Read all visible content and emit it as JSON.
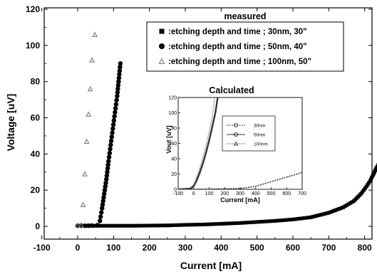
{
  "chart_data": [
    {
      "type": "scatter",
      "xlabel": "Current [mA]",
      "ylabel": "Voltage [uV]",
      "xlim": [
        -100,
        840
      ],
      "ylim": [
        -5,
        120
      ],
      "xticks": [
        "-100",
        "0",
        "100",
        "200",
        "300",
        "400",
        "500",
        "600",
        "700",
        "800"
      ],
      "yticks": [
        "0",
        "20",
        "40",
        "60",
        "80",
        "100",
        "120"
      ],
      "legend_title": "measured",
      "legend_position": "top-right",
      "series": [
        {
          "name": ":etching depth and time ;   30nm, 30\"",
          "marker": "square",
          "color": "#000000",
          "points": [
            [
              0,
              0.3
            ],
            [
              50,
              0.3
            ],
            [
              100,
              0.3
            ],
            [
              150,
              0.3
            ],
            [
              200,
              0.4
            ],
            [
              250,
              0.5
            ],
            [
              300,
              0.8
            ],
            [
              350,
              1.0
            ],
            [
              400,
              1.4
            ],
            [
              450,
              1.8
            ],
            [
              500,
              2.4
            ],
            [
              550,
              3.0
            ],
            [
              600,
              3.8
            ],
            [
              650,
              5.0
            ],
            [
              700,
              7.5
            ],
            [
              740,
              10.5
            ],
            [
              770,
              14
            ],
            [
              790,
              18
            ],
            [
              805,
              22
            ],
            [
              815,
              25
            ],
            [
              825,
              29
            ],
            [
              832,
              32
            ],
            [
              838,
              34
            ]
          ]
        },
        {
          "name": ":etching depth and time ;   50nm, 40\"",
          "marker": "circle",
          "color": "#000000",
          "points": [
            [
              0,
              0.3
            ],
            [
              20,
              0.3
            ],
            [
              40,
              0.4
            ],
            [
              55,
              0.6
            ],
            [
              62,
              3
            ],
            [
              68,
              10
            ],
            [
              74,
              18
            ],
            [
              80,
              26
            ],
            [
              86,
              36
            ],
            [
              92,
              45
            ],
            [
              98,
              54
            ],
            [
              104,
              63
            ],
            [
              110,
              72
            ],
            [
              115,
              82
            ],
            [
              119,
              90
            ]
          ]
        },
        {
          "name": ":etching depth and time ; 100nm, 50\"",
          "marker": "triangle",
          "color": "#7a7a7a",
          "points": [
            [
              0,
              0.5
            ],
            [
              10,
              0.8
            ],
            [
              15,
              12
            ],
            [
              20,
              29
            ],
            [
              25,
              47
            ],
            [
              30,
              62
            ],
            [
              35,
              76
            ],
            [
              40,
              92
            ],
            [
              48,
              106
            ]
          ]
        }
      ]
    },
    {
      "type": "line",
      "title": "Calculated",
      "xlabel": "Current [mA]",
      "ylabel": "Vout [uV]",
      "xlim": [
        -100,
        700
      ],
      "ylim": [
        0,
        120
      ],
      "xticks": [
        "-100",
        "0",
        "100",
        "200",
        "300",
        "400",
        "500",
        "600",
        "700"
      ],
      "yticks": [
        "0",
        "20",
        "40",
        "60",
        "80",
        "100",
        "120"
      ],
      "legend_position": "right",
      "series": [
        {
          "name": "30nm",
          "color": "#333333",
          "points": [
            [
              -100,
              0
            ],
            [
              0,
              0
            ],
            [
              300,
              1
            ],
            [
              400,
              4
            ],
            [
              450,
              7
            ],
            [
              500,
              10
            ],
            [
              550,
              13
            ],
            [
              600,
              16
            ],
            [
              650,
              19
            ],
            [
              700,
              22
            ]
          ]
        },
        {
          "name": "50nm",
          "color": "#333333",
          "points": [
            [
              -100,
              0
            ],
            [
              -20,
              1
            ],
            [
              0,
              4
            ],
            [
              20,
              12
            ],
            [
              40,
              22
            ],
            [
              60,
              34
            ],
            [
              80,
              48
            ],
            [
              100,
              64
            ],
            [
              120,
              82
            ],
            [
              140,
              100
            ],
            [
              155,
              120
            ]
          ]
        },
        {
          "name": "100nm",
          "color": "#666666",
          "points": [
            [
              -100,
              0
            ],
            [
              -30,
              1
            ],
            [
              0,
              6
            ],
            [
              20,
              16
            ],
            [
              40,
              28
            ],
            [
              60,
              42
            ],
            [
              80,
              58
            ],
            [
              100,
              76
            ],
            [
              120,
              96
            ],
            [
              135,
              120
            ]
          ]
        }
      ]
    }
  ]
}
